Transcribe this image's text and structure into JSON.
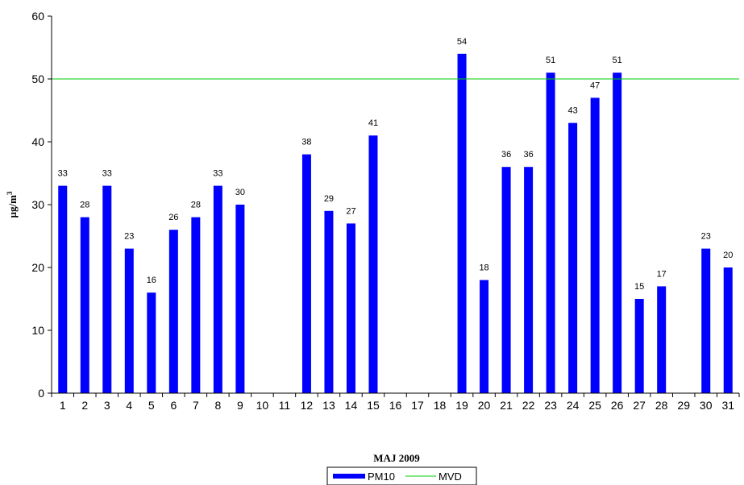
{
  "chart_data": {
    "type": "bar",
    "categories": [
      "1",
      "2",
      "3",
      "4",
      "5",
      "6",
      "7",
      "8",
      "9",
      "10",
      "11",
      "12",
      "13",
      "14",
      "15",
      "16",
      "17",
      "18",
      "19",
      "20",
      "21",
      "22",
      "23",
      "24",
      "25",
      "26",
      "27",
      "28",
      "29",
      "30",
      "31"
    ],
    "series": [
      {
        "name": "PM10",
        "type": "bar",
        "color": "#0000ff",
        "values": [
          33,
          28,
          33,
          23,
          16,
          26,
          28,
          33,
          30,
          null,
          null,
          38,
          29,
          27,
          41,
          null,
          null,
          null,
          54,
          18,
          36,
          36,
          51,
          43,
          47,
          51,
          15,
          17,
          null,
          23,
          20
        ],
        "labels": [
          "33",
          "28",
          "33",
          "23",
          "16",
          "26",
          "28",
          "33",
          "30",
          "",
          "",
          "38",
          "29",
          "27",
          "41",
          "",
          "",
          "",
          "54",
          "18",
          "36",
          "36",
          "51",
          "43",
          "47",
          "51",
          "15",
          "17",
          "",
          "23",
          "20"
        ]
      },
      {
        "name": "MVD",
        "type": "line",
        "color": "#00cc00",
        "value": 50
      }
    ],
    "xlabel": "MAJ 2009",
    "ylabel": "µg/m",
    "ylabel_sup": "3",
    "ylim": [
      0,
      60
    ],
    "yticks": [
      "0",
      "10",
      "20",
      "30",
      "40",
      "50",
      "60"
    ],
    "grid": false,
    "legend_position": "bottom-center"
  }
}
